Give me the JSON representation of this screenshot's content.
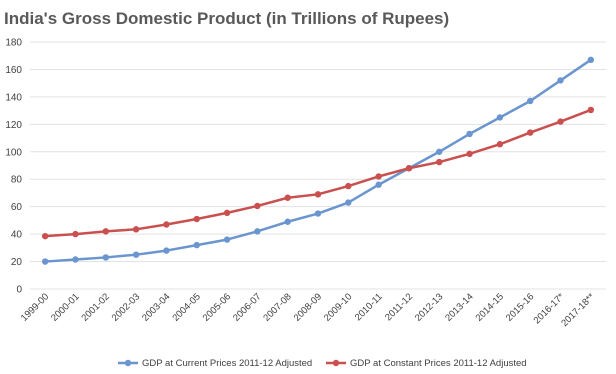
{
  "chart_data": {
    "type": "line",
    "title": "India's Gross Domestic Product (in Trillions of Rupees)",
    "xlabel": "",
    "ylabel": "",
    "ylim": [
      0,
      180
    ],
    "yticks": [
      0,
      20,
      40,
      60,
      80,
      100,
      120,
      140,
      160,
      180
    ],
    "grid": true,
    "legend_position": "bottom",
    "categories": [
      "1999-00",
      "2000-01",
      "2001-02",
      "2002-03",
      "2003-04",
      "2004-05",
      "2005-06",
      "2006-07",
      "2007-08",
      "2008-09",
      "2009-10",
      "2010-11",
      "2011-12",
      "2012-13",
      "2013-14",
      "2014-15",
      "2015-16",
      "2016-17*",
      "2017-18**"
    ],
    "series": [
      {
        "name": "GDP at Current Prices 2011-12 Adjusted",
        "color": "#6a95cf",
        "values": [
          20,
          21.5,
          23,
          25,
          28,
          32,
          36,
          42,
          49,
          55,
          63,
          76,
          88,
          100,
          113,
          125,
          137,
          152,
          167
        ]
      },
      {
        "name": "GDP at Constant Prices 2011-12 Adjusted",
        "color": "#c9504f",
        "values": [
          38.5,
          40,
          42,
          43.5,
          47,
          51,
          55.5,
          60.5,
          66.5,
          69,
          75,
          82,
          88,
          92.5,
          98.5,
          105.5,
          114,
          122,
          130.5
        ]
      }
    ]
  }
}
